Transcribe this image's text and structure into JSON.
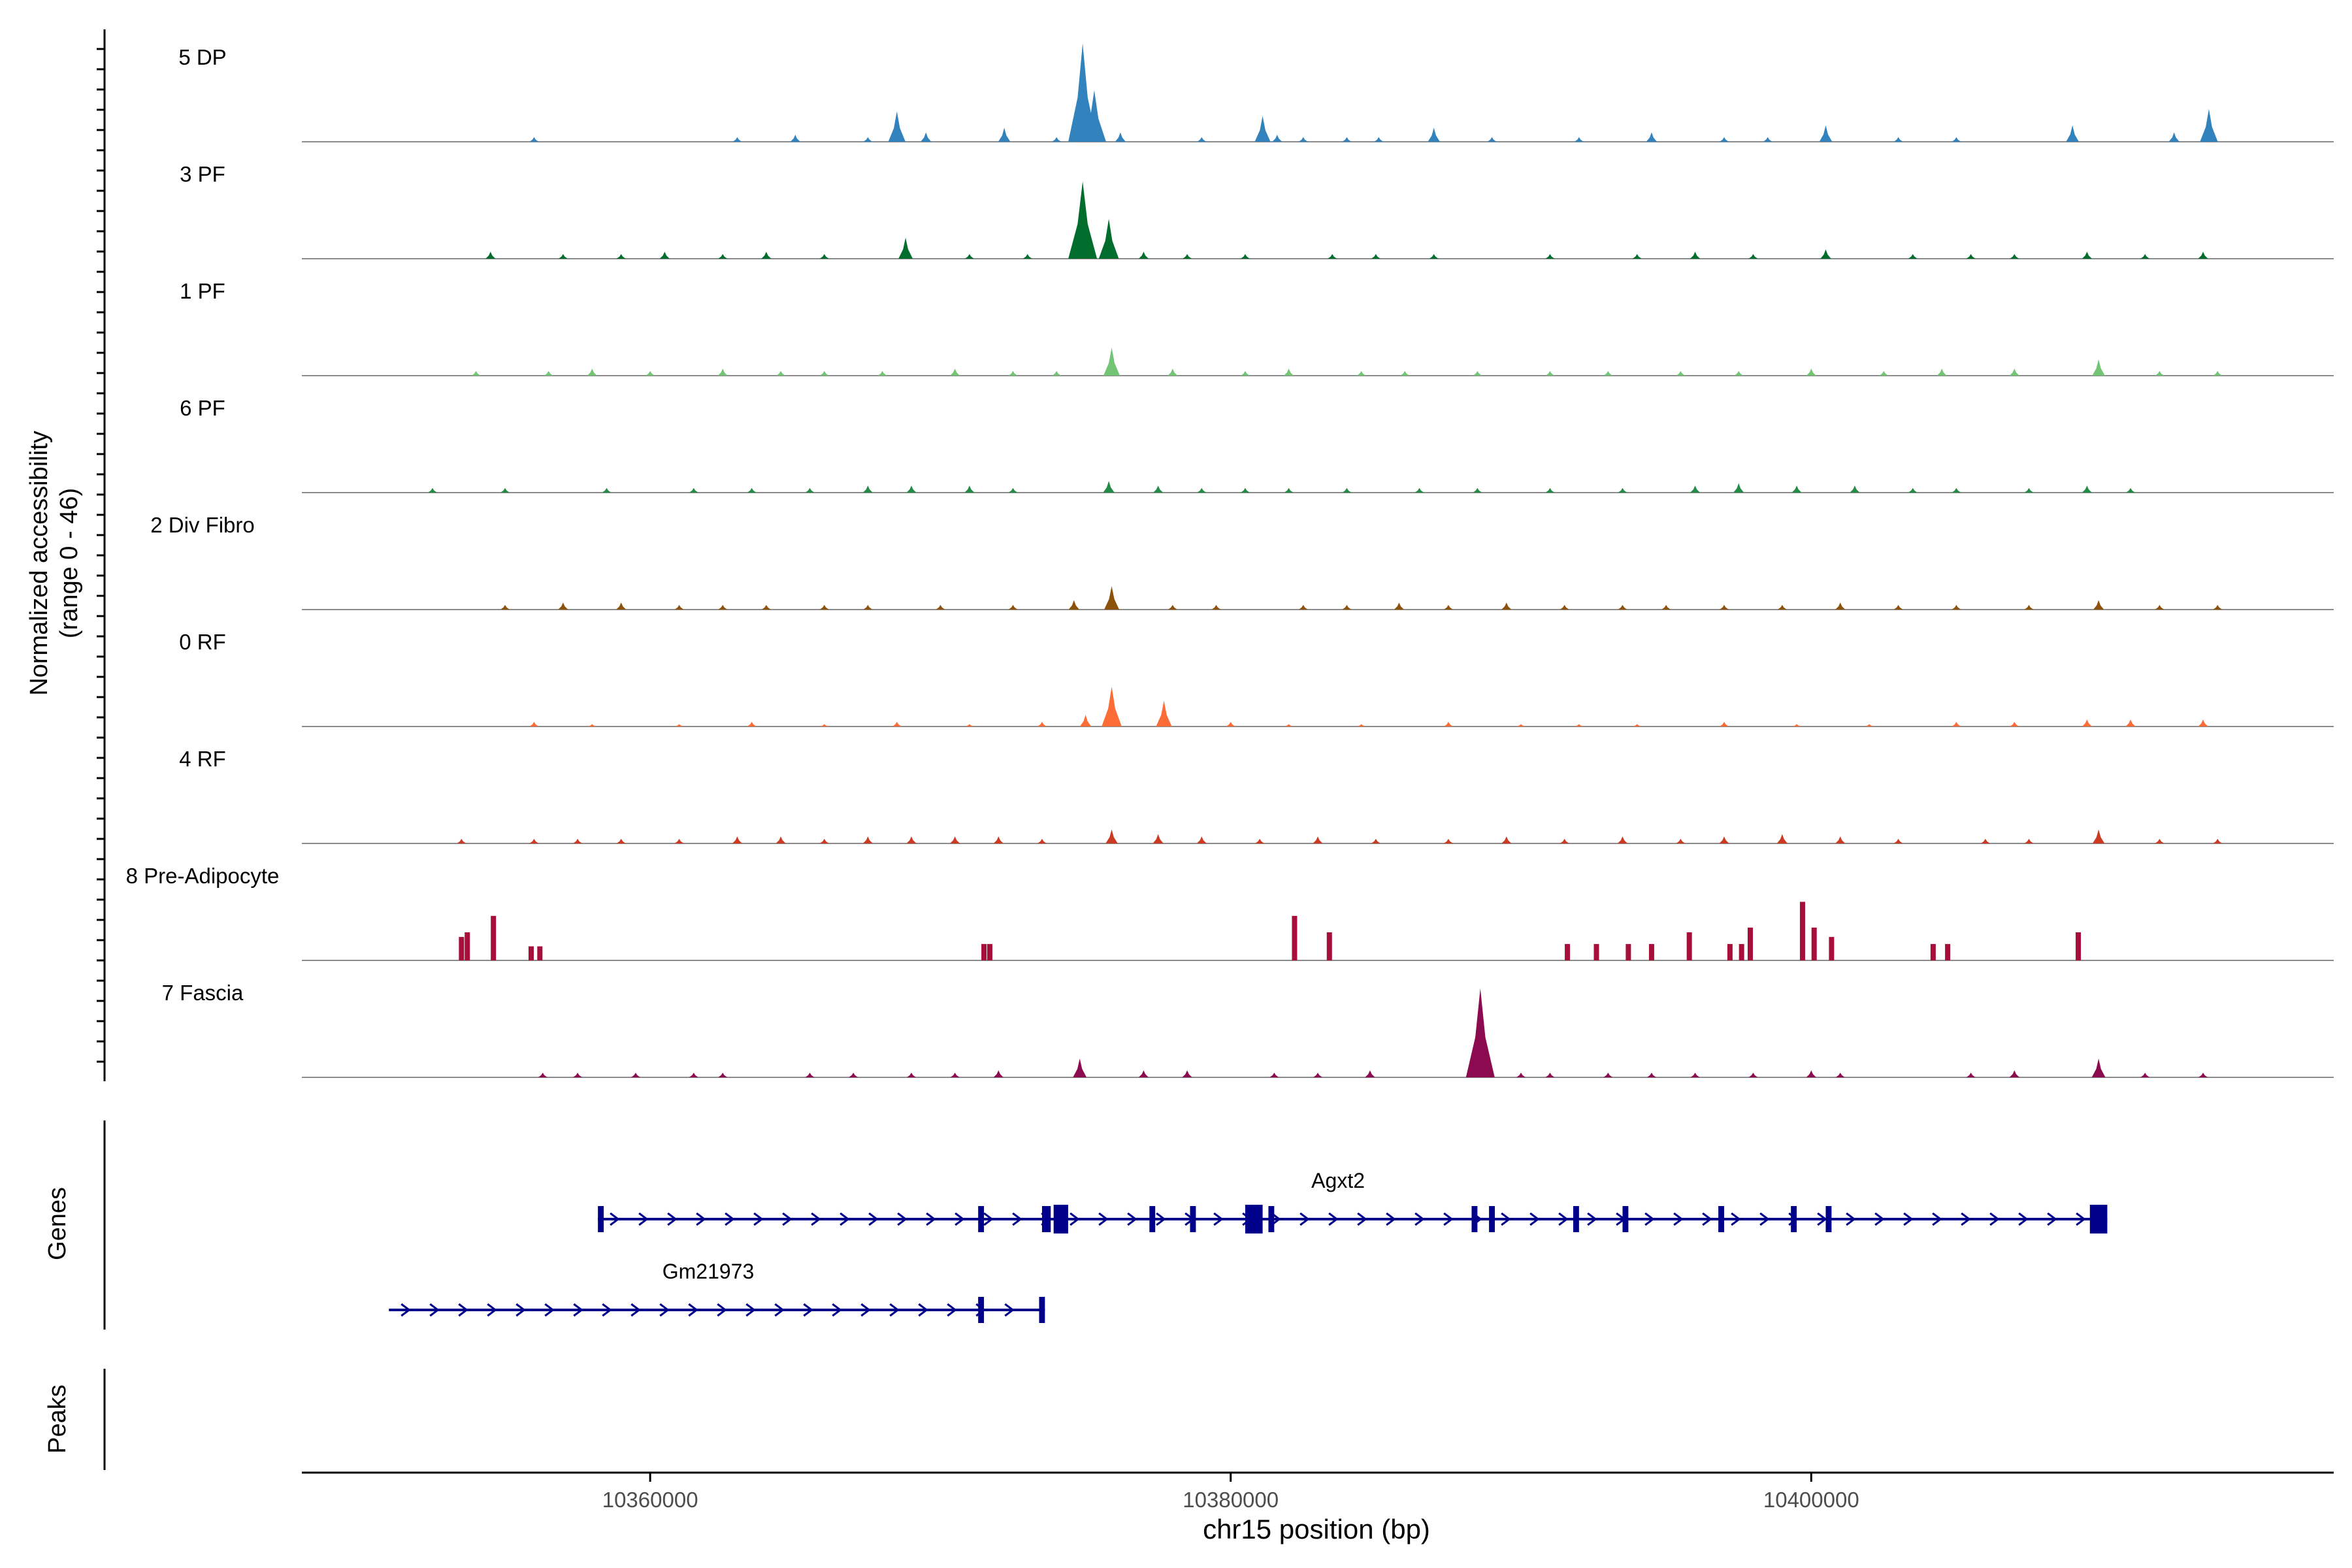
{
  "chart_data": {
    "type": "area",
    "title": "",
    "chromosome": "chr15",
    "xlabel": "chr15 position (bp)",
    "ylabel": "Normalized accessibility",
    "ylabel_range": "(range 0 - 46)",
    "xlim": [
      10348000,
      10418000
    ],
    "x_ticks": [
      10360000,
      10380000,
      10400000
    ],
    "x_tick_labels": [
      "10360000",
      "10380000",
      "10400000"
    ],
    "ylim": [
      0,
      46
    ],
    "tracks": [
      {
        "name": "5 DP",
        "color": "#3182bd",
        "peaks": [
          [
            10356000,
            2
          ],
          [
            10363000,
            2
          ],
          [
            10365000,
            3
          ],
          [
            10367500,
            2
          ],
          [
            10368500,
            13
          ],
          [
            10369500,
            4
          ],
          [
            10372200,
            6
          ],
          [
            10374000,
            2
          ],
          [
            10374900,
            42
          ],
          [
            10375300,
            22
          ],
          [
            10376200,
            4
          ],
          [
            10379000,
            2
          ],
          [
            10381100,
            11
          ],
          [
            10381600,
            3
          ],
          [
            10382500,
            2
          ],
          [
            10384000,
            2
          ],
          [
            10385100,
            2
          ],
          [
            10387000,
            6
          ],
          [
            10389000,
            2
          ],
          [
            10392000,
            2
          ],
          [
            10394500,
            4
          ],
          [
            10397000,
            2
          ],
          [
            10398500,
            2
          ],
          [
            10400500,
            7
          ],
          [
            10403000,
            2
          ],
          [
            10405000,
            2
          ],
          [
            10409000,
            7
          ],
          [
            10412500,
            4
          ],
          [
            10413700,
            14
          ]
        ]
      },
      {
        "name": "3 PF",
        "color": "#006d2c",
        "peaks": [
          [
            10354500,
            3
          ],
          [
            10357000,
            2
          ],
          [
            10359000,
            2
          ],
          [
            10360500,
            3
          ],
          [
            10362500,
            2
          ],
          [
            10364000,
            3
          ],
          [
            10366000,
            2
          ],
          [
            10368800,
            9
          ],
          [
            10371000,
            2
          ],
          [
            10373000,
            2
          ],
          [
            10374900,
            33
          ],
          [
            10375800,
            17
          ],
          [
            10377000,
            3
          ],
          [
            10378500,
            2
          ],
          [
            10380500,
            2
          ],
          [
            10383500,
            2
          ],
          [
            10385000,
            2
          ],
          [
            10387000,
            2
          ],
          [
            10391000,
            2
          ],
          [
            10394000,
            2
          ],
          [
            10396000,
            3
          ],
          [
            10398000,
            2
          ],
          [
            10400500,
            4
          ],
          [
            10403500,
            2
          ],
          [
            10405500,
            2
          ],
          [
            10407000,
            2
          ],
          [
            10409500,
            3
          ],
          [
            10411500,
            2
          ],
          [
            10413500,
            3
          ]
        ]
      },
      {
        "name": "1 PF",
        "color": "#74c476",
        "peaks": [
          [
            10354000,
            2
          ],
          [
            10356500,
            2
          ],
          [
            10358000,
            3
          ],
          [
            10360000,
            2
          ],
          [
            10362500,
            3
          ],
          [
            10364500,
            2
          ],
          [
            10366000,
            2
          ],
          [
            10368000,
            2
          ],
          [
            10370500,
            3
          ],
          [
            10372500,
            2
          ],
          [
            10374000,
            2
          ],
          [
            10375900,
            12
          ],
          [
            10378000,
            3
          ],
          [
            10380500,
            2
          ],
          [
            10382000,
            3
          ],
          [
            10384500,
            2
          ],
          [
            10386000,
            2
          ],
          [
            10388500,
            2
          ],
          [
            10391000,
            2
          ],
          [
            10393000,
            2
          ],
          [
            10395500,
            2
          ],
          [
            10397500,
            2
          ],
          [
            10400000,
            3
          ],
          [
            10402500,
            2
          ],
          [
            10404500,
            3
          ],
          [
            10407000,
            3
          ],
          [
            10409900,
            7
          ],
          [
            10412000,
            2
          ],
          [
            10414000,
            2
          ]
        ]
      },
      {
        "name": "6 PF",
        "color": "#238b45",
        "peaks": [
          [
            10352500,
            2
          ],
          [
            10355000,
            2
          ],
          [
            10358500,
            2
          ],
          [
            10361500,
            2
          ],
          [
            10363500,
            2
          ],
          [
            10365500,
            2
          ],
          [
            10367500,
            3
          ],
          [
            10369000,
            3
          ],
          [
            10371000,
            3
          ],
          [
            10372500,
            2
          ],
          [
            10375800,
            5
          ],
          [
            10377500,
            3
          ],
          [
            10379000,
            2
          ],
          [
            10380500,
            2
          ],
          [
            10382000,
            2
          ],
          [
            10384000,
            2
          ],
          [
            10386500,
            2
          ],
          [
            10388500,
            2
          ],
          [
            10391000,
            2
          ],
          [
            10393500,
            2
          ],
          [
            10396000,
            3
          ],
          [
            10397500,
            4
          ],
          [
            10399500,
            3
          ],
          [
            10401500,
            3
          ],
          [
            10403500,
            2
          ],
          [
            10405000,
            2
          ],
          [
            10407500,
            2
          ],
          [
            10409500,
            3
          ],
          [
            10411000,
            2
          ]
        ]
      },
      {
        "name": "2 Div Fibro",
        "color": "#8c510a",
        "peaks": [
          [
            10355000,
            2
          ],
          [
            10357000,
            3
          ],
          [
            10359000,
            3
          ],
          [
            10361000,
            2
          ],
          [
            10362500,
            2
          ],
          [
            10364000,
            2
          ],
          [
            10366000,
            2
          ],
          [
            10367500,
            2
          ],
          [
            10370000,
            2
          ],
          [
            10372500,
            2
          ],
          [
            10374600,
            4
          ],
          [
            10375900,
            10
          ],
          [
            10378000,
            2
          ],
          [
            10379500,
            2
          ],
          [
            10382500,
            2
          ],
          [
            10384000,
            2
          ],
          [
            10385800,
            3
          ],
          [
            10387500,
            2
          ],
          [
            10389500,
            3
          ],
          [
            10391500,
            2
          ],
          [
            10393500,
            2
          ],
          [
            10395000,
            2
          ],
          [
            10397000,
            2
          ],
          [
            10399000,
            2
          ],
          [
            10401000,
            3
          ],
          [
            10403000,
            2
          ],
          [
            10405000,
            2
          ],
          [
            10407500,
            2
          ],
          [
            10409900,
            4
          ],
          [
            10412000,
            2
          ],
          [
            10414000,
            2
          ]
        ]
      },
      {
        "name": "0 RF",
        "color": "#fc6c36",
        "peaks": [
          [
            10356000,
            2
          ],
          [
            10358000,
            1
          ],
          [
            10361000,
            1
          ],
          [
            10363500,
            2
          ],
          [
            10366000,
            1
          ],
          [
            10368500,
            2
          ],
          [
            10371000,
            1
          ],
          [
            10373500,
            2
          ],
          [
            10375000,
            5
          ],
          [
            10375900,
            17
          ],
          [
            10377700,
            11
          ],
          [
            10380000,
            2
          ],
          [
            10382000,
            1
          ],
          [
            10384500,
            1
          ],
          [
            10387500,
            2
          ],
          [
            10390000,
            1
          ],
          [
            10392000,
            1
          ],
          [
            10394000,
            1
          ],
          [
            10397000,
            2
          ],
          [
            10399500,
            1
          ],
          [
            10402000,
            1
          ],
          [
            10405000,
            2
          ],
          [
            10407000,
            2
          ],
          [
            10409500,
            3
          ],
          [
            10411000,
            3
          ],
          [
            10413500,
            3
          ]
        ]
      },
      {
        "name": "4 RF",
        "color": "#cb3a22",
        "peaks": [
          [
            10353500,
            2
          ],
          [
            10356000,
            2
          ],
          [
            10357500,
            2
          ],
          [
            10359000,
            2
          ],
          [
            10361000,
            2
          ],
          [
            10363000,
            3
          ],
          [
            10364500,
            3
          ],
          [
            10366000,
            2
          ],
          [
            10367500,
            3
          ],
          [
            10369000,
            3
          ],
          [
            10370500,
            3
          ],
          [
            10372000,
            3
          ],
          [
            10373500,
            2
          ],
          [
            10375900,
            6
          ],
          [
            10377500,
            4
          ],
          [
            10379000,
            3
          ],
          [
            10381000,
            2
          ],
          [
            10383000,
            3
          ],
          [
            10385000,
            2
          ],
          [
            10387500,
            2
          ],
          [
            10389500,
            3
          ],
          [
            10391500,
            2
          ],
          [
            10393500,
            3
          ],
          [
            10395500,
            2
          ],
          [
            10397000,
            3
          ],
          [
            10399000,
            4
          ],
          [
            10401000,
            3
          ],
          [
            10403000,
            2
          ],
          [
            10406000,
            2
          ],
          [
            10407500,
            2
          ],
          [
            10409900,
            6
          ],
          [
            10412000,
            2
          ],
          [
            10414000,
            2
          ]
        ]
      },
      {
        "name": "8 Pre-Adipocyte",
        "color": "#a50f3a",
        "peaks": [
          [
            10353500,
            10
          ],
          [
            10353700,
            12
          ],
          [
            10354600,
            19
          ],
          [
            10355900,
            6
          ],
          [
            10356200,
            6
          ],
          [
            10371500,
            7
          ],
          [
            10371700,
            7
          ],
          [
            10382200,
            19
          ],
          [
            10383400,
            12
          ],
          [
            10391600,
            7
          ],
          [
            10392600,
            7
          ],
          [
            10393700,
            7
          ],
          [
            10394500,
            7
          ],
          [
            10395800,
            12
          ],
          [
            10397200,
            7
          ],
          [
            10397600,
            7
          ],
          [
            10397900,
            14
          ],
          [
            10399700,
            25
          ],
          [
            10400100,
            14
          ],
          [
            10400700,
            10
          ],
          [
            10404200,
            7
          ],
          [
            10404700,
            7
          ],
          [
            10409200,
            12
          ]
        ]
      },
      {
        "name": "7 Fascia",
        "color": "#8b0a50",
        "peaks": [
          [
            10356300,
            2
          ],
          [
            10357500,
            2
          ],
          [
            10359500,
            2
          ],
          [
            10361500,
            2
          ],
          [
            10362500,
            2
          ],
          [
            10365500,
            2
          ],
          [
            10367000,
            2
          ],
          [
            10369000,
            2
          ],
          [
            10370500,
            2
          ],
          [
            10372000,
            3
          ],
          [
            10374800,
            8
          ],
          [
            10377000,
            3
          ],
          [
            10378500,
            3
          ],
          [
            10381500,
            2
          ],
          [
            10383000,
            2
          ],
          [
            10384800,
            3
          ],
          [
            10388600,
            38
          ],
          [
            10390000,
            2
          ],
          [
            10391000,
            2
          ],
          [
            10393000,
            2
          ],
          [
            10394500,
            2
          ],
          [
            10396000,
            2
          ],
          [
            10398000,
            2
          ],
          [
            10400000,
            3
          ],
          [
            10401000,
            2
          ],
          [
            10405500,
            2
          ],
          [
            10407000,
            3
          ],
          [
            10409900,
            8
          ],
          [
            10411500,
            2
          ],
          [
            10413500,
            2
          ]
        ]
      }
    ],
    "genes_label": "Genes",
    "peaks_label": "Peaks",
    "genes": [
      {
        "name": "Agxt2",
        "color": "#00008b",
        "start": 10358200,
        "end": 10410200,
        "exons": [
          [
            10358200,
            10358400
          ],
          [
            10371300,
            10371500
          ],
          [
            10373500,
            10373800
          ],
          [
            10373900,
            10374400
          ],
          [
            10377200,
            10377400
          ],
          [
            10378600,
            10378800
          ],
          [
            10380500,
            10381100
          ],
          [
            10381300,
            10381500
          ],
          [
            10388300,
            10388500
          ],
          [
            10388900,
            10389100
          ],
          [
            10391800,
            10392000
          ],
          [
            10393500,
            10393700
          ],
          [
            10396800,
            10397000
          ],
          [
            10399300,
            10399500
          ],
          [
            10400500,
            10400700
          ],
          [
            10409600,
            10410200
          ]
        ]
      },
      {
        "name": "Gm21973",
        "color": "#00008b",
        "start": 10351000,
        "end": 10373600,
        "exons": [
          [
            10371300,
            10371500
          ],
          [
            10373400,
            10373600
          ]
        ]
      }
    ]
  }
}
